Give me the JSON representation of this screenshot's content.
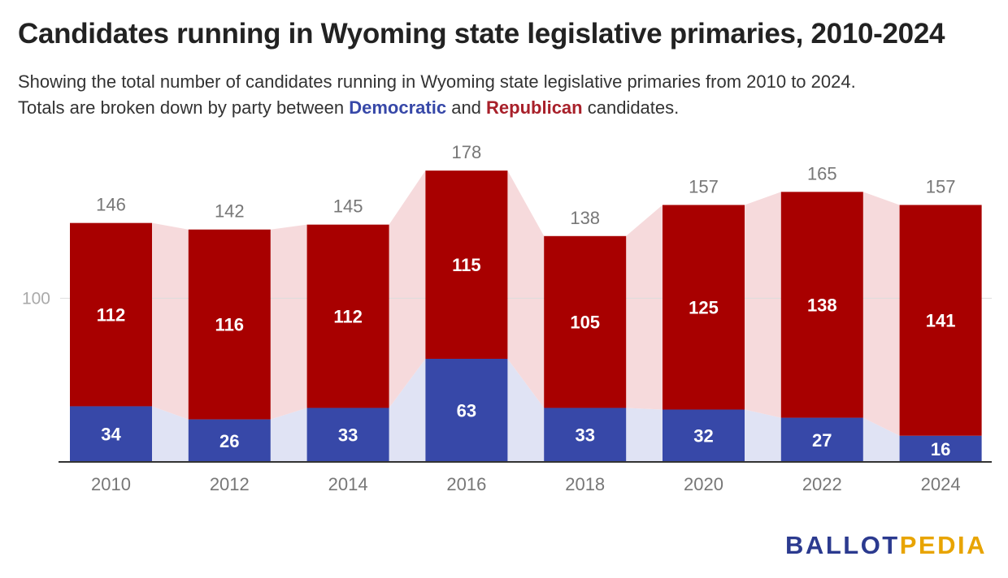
{
  "title": "Candidates running in Wyoming state legislative primaries, 2010-2024",
  "subtitle": {
    "line1": "Showing the total number of candidates running in Wyoming state legislative primaries from 2010 to 2024.",
    "line2_prefix": "Totals are broken down by party between ",
    "democratic_word": "Democratic",
    "line2_and": " and ",
    "republican_word": "Republican",
    "line2_suffix": " candidates."
  },
  "logo": {
    "part1": "BALLOT",
    "part2": "PEDIA"
  },
  "colors": {
    "democratic": "#3748a8",
    "republican": "#a80000",
    "democratic_band": "#e0e3f4",
    "republican_band": "#f6dadc",
    "total_label": "#777777",
    "axis_label": "#777777"
  },
  "chart_data": {
    "type": "bar",
    "stacked": true,
    "categories": [
      "2010",
      "2012",
      "2014",
      "2016",
      "2018",
      "2020",
      "2022",
      "2024"
    ],
    "series": [
      {
        "name": "Democratic",
        "values": [
          34,
          26,
          33,
          63,
          33,
          32,
          27,
          16
        ]
      },
      {
        "name": "Republican",
        "values": [
          112,
          116,
          112,
          115,
          105,
          125,
          138,
          141
        ]
      }
    ],
    "totals": [
      146,
      142,
      145,
      178,
      138,
      157,
      165,
      157
    ],
    "yticks": [
      100
    ],
    "ylim": [
      0,
      178
    ],
    "grid": true,
    "xlabel": "",
    "ylabel": ""
  }
}
